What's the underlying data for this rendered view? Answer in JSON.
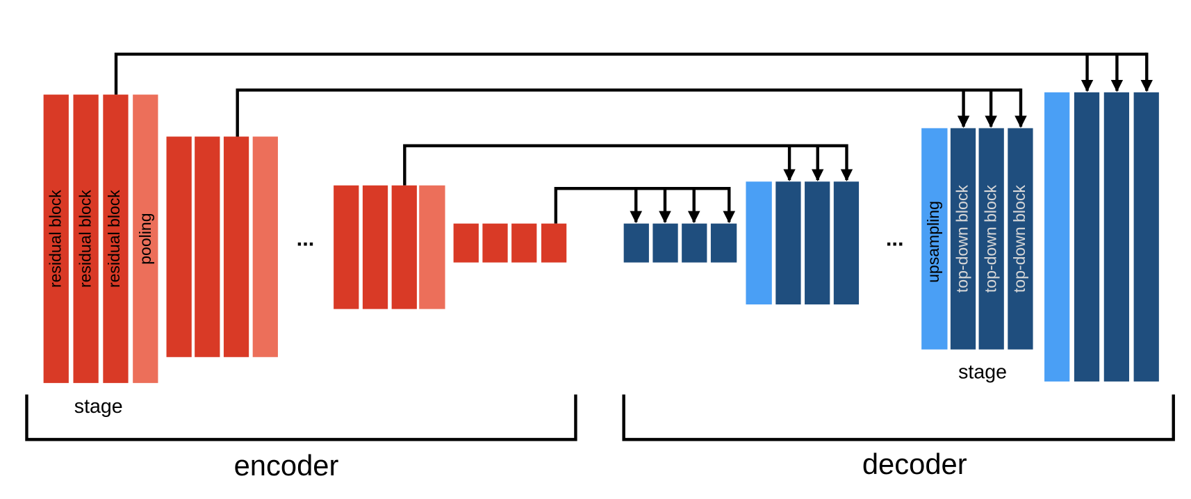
{
  "encoder": {
    "label": "encoder",
    "stage_label": "stage",
    "block_labels": [
      "residual block",
      "residual block",
      "residual block",
      "pooling"
    ],
    "ellipsis": "..."
  },
  "decoder": {
    "label": "decoder",
    "stage_label": "stage",
    "block_labels": [
      "upsampling",
      "top-down block",
      "top-down block",
      "top-down block"
    ],
    "ellipsis": "..."
  }
}
